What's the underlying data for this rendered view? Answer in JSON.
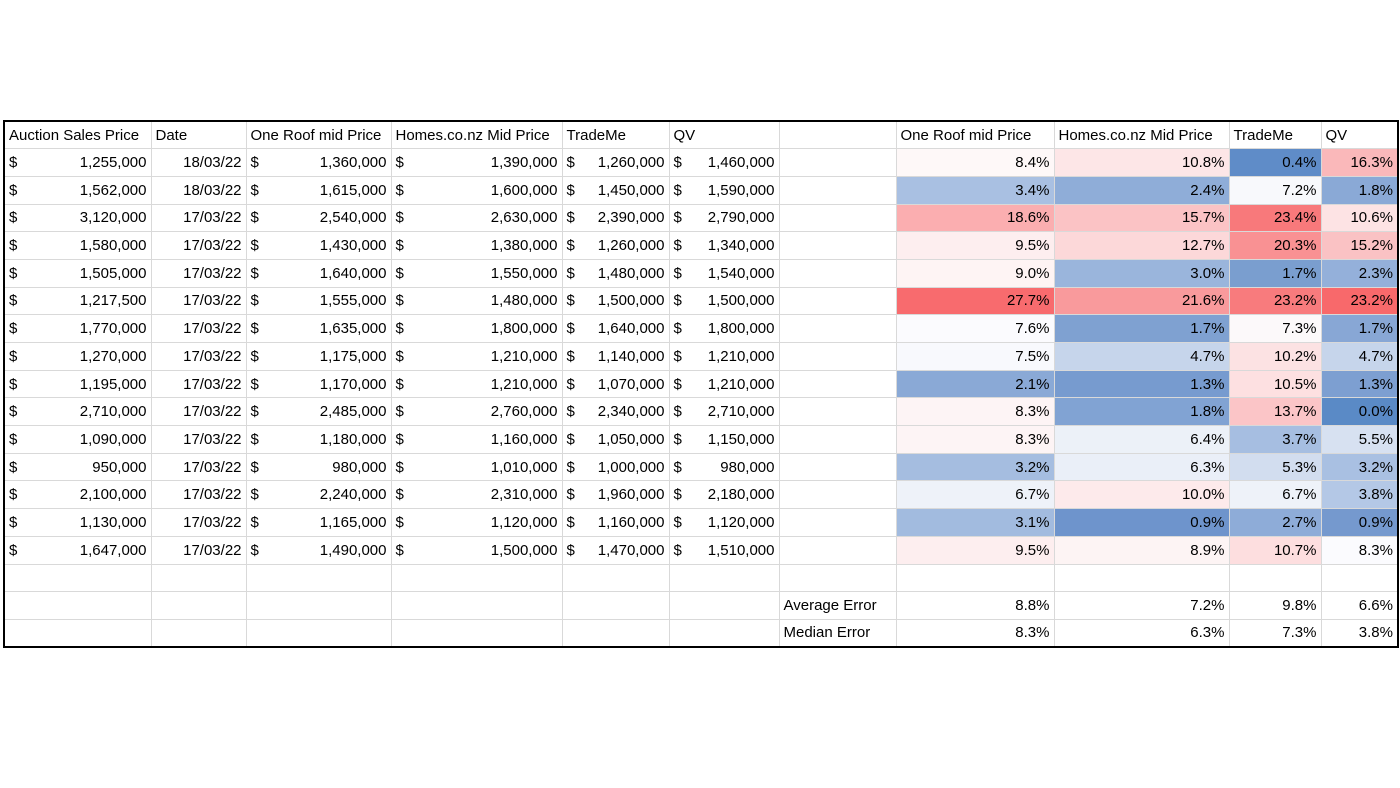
{
  "table": {
    "header_left": [
      "Auction Sales Price",
      "Date",
      "One Roof mid Price",
      "Homes.co.nz Mid Price",
      "TradeMe",
      "QV"
    ],
    "header_right": [
      "One Roof mid Price",
      "Homes.co.nz Mid Price",
      "TradeMe",
      "QV"
    ],
    "rows": [
      {
        "cells": [
          [
            "$",
            "1,255,000"
          ],
          "18/03/22",
          [
            "$",
            "1,360,000"
          ],
          [
            "$",
            "1,390,000"
          ],
          [
            "$",
            "1,260,000"
          ],
          [
            "$",
            "1,460,000"
          ]
        ],
        "errors": [
          {
            "text": "8.4%",
            "fill": "#fef8f8"
          },
          {
            "text": "10.8%",
            "fill": "#fde6e7"
          },
          {
            "text": "0.4%",
            "fill": "#5f8cc8"
          },
          {
            "text": "16.3%",
            "fill": "#fab8ba"
          }
        ]
      },
      {
        "cells": [
          [
            "$",
            "1,562,000"
          ],
          "18/03/22",
          [
            "$",
            "1,615,000"
          ],
          [
            "$",
            "1,600,000"
          ],
          [
            "$",
            "1,450,000"
          ],
          [
            "$",
            "1,590,000"
          ]
        ],
        "errors": [
          {
            "text": "3.4%",
            "fill": "#a9c0e2"
          },
          {
            "text": "2.4%",
            "fill": "#8fadd8"
          },
          {
            "text": "7.2%",
            "fill": "#f8f9fc"
          },
          {
            "text": "1.8%",
            "fill": "#8aa9d6"
          }
        ]
      },
      {
        "cells": [
          [
            "$",
            "3,120,000"
          ],
          "17/03/22",
          [
            "$",
            "2,540,000"
          ],
          [
            "$",
            "2,630,000"
          ],
          [
            "$",
            "2,390,000"
          ],
          [
            "$",
            "2,790,000"
          ]
        ],
        "errors": [
          {
            "text": "18.6%",
            "fill": "#fbaeb0"
          },
          {
            "text": "15.7%",
            "fill": "#fbc3c5"
          },
          {
            "text": "23.4%",
            "fill": "#f8797b"
          },
          {
            "text": "10.6%",
            "fill": "#fde3e4"
          }
        ]
      },
      {
        "cells": [
          [
            "$",
            "1,580,000"
          ],
          "17/03/22",
          [
            "$",
            "1,430,000"
          ],
          [
            "$",
            "1,380,000"
          ],
          [
            "$",
            "1,260,000"
          ],
          [
            "$",
            "1,340,000"
          ]
        ],
        "errors": [
          {
            "text": "9.5%",
            "fill": "#fdeeef"
          },
          {
            "text": "12.7%",
            "fill": "#fcd8d9"
          },
          {
            "text": "20.3%",
            "fill": "#f99193"
          },
          {
            "text": "15.2%",
            "fill": "#fac2c4"
          }
        ]
      },
      {
        "cells": [
          [
            "$",
            "1,505,000"
          ],
          "17/03/22",
          [
            "$",
            "1,640,000"
          ],
          [
            "$",
            "1,550,000"
          ],
          [
            "$",
            "1,480,000"
          ],
          [
            "$",
            "1,540,000"
          ]
        ],
        "errors": [
          {
            "text": "9.0%",
            "fill": "#fef4f4"
          },
          {
            "text": "3.0%",
            "fill": "#9ab5dc"
          },
          {
            "text": "1.7%",
            "fill": "#7a9ecf"
          },
          {
            "text": "2.3%",
            "fill": "#94b0da"
          }
        ]
      },
      {
        "cells": [
          [
            "$",
            "1,217,500"
          ],
          "17/03/22",
          [
            "$",
            "1,555,000"
          ],
          [
            "$",
            "1,480,000"
          ],
          [
            "$",
            "1,500,000"
          ],
          [
            "$",
            "1,500,000"
          ]
        ],
        "errors": [
          {
            "text": "27.7%",
            "fill": "#f86b6e"
          },
          {
            "text": "21.6%",
            "fill": "#f99a9c"
          },
          {
            "text": "23.2%",
            "fill": "#f87b7d"
          },
          {
            "text": "23.2%",
            "fill": "#f8696b"
          }
        ]
      },
      {
        "cells": [
          [
            "$",
            "1,770,000"
          ],
          "17/03/22",
          [
            "$",
            "1,635,000"
          ],
          [
            "$",
            "1,800,000"
          ],
          [
            "$",
            "1,640,000"
          ],
          [
            "$",
            "1,800,000"
          ]
        ],
        "errors": [
          {
            "text": "7.6%",
            "fill": "#fbfbfe"
          },
          {
            "text": "1.7%",
            "fill": "#7fa1d1"
          },
          {
            "text": "7.3%",
            "fill": "#fcf9fa"
          },
          {
            "text": "1.7%",
            "fill": "#88a7d5"
          }
        ]
      },
      {
        "cells": [
          [
            "$",
            "1,270,000"
          ],
          "17/03/22",
          [
            "$",
            "1,175,000"
          ],
          [
            "$",
            "1,210,000"
          ],
          [
            "$",
            "1,140,000"
          ],
          [
            "$",
            "1,210,000"
          ]
        ],
        "errors": [
          {
            "text": "7.5%",
            "fill": "#f8f9fd"
          },
          {
            "text": "4.7%",
            "fill": "#c6d5eb"
          },
          {
            "text": "10.2%",
            "fill": "#fce2e3"
          },
          {
            "text": "4.7%",
            "fill": "#c6d5eb"
          }
        ]
      },
      {
        "cells": [
          [
            "$",
            "1,195,000"
          ],
          "17/03/22",
          [
            "$",
            "1,170,000"
          ],
          [
            "$",
            "1,210,000"
          ],
          [
            "$",
            "1,070,000"
          ],
          [
            "$",
            "1,210,000"
          ]
        ],
        "errors": [
          {
            "text": "2.1%",
            "fill": "#8aa9d6"
          },
          {
            "text": "1.3%",
            "fill": "#779bcf"
          },
          {
            "text": "10.5%",
            "fill": "#fde0e1"
          },
          {
            "text": "1.3%",
            "fill": "#7d9fd1"
          }
        ]
      },
      {
        "cells": [
          [
            "$",
            "2,710,000"
          ],
          "17/03/22",
          [
            "$",
            "2,485,000"
          ],
          [
            "$",
            "2,760,000"
          ],
          [
            "$",
            "2,340,000"
          ],
          [
            "$",
            "2,710,000"
          ]
        ],
        "errors": [
          {
            "text": "8.3%",
            "fill": "#fdf4f5"
          },
          {
            "text": "1.8%",
            "fill": "#81a3d3"
          },
          {
            "text": "13.7%",
            "fill": "#fbc5c7"
          },
          {
            "text": "0.0%",
            "fill": "#5a8ac6"
          }
        ]
      },
      {
        "cells": [
          [
            "$",
            "1,090,000"
          ],
          "17/03/22",
          [
            "$",
            "1,180,000"
          ],
          [
            "$",
            "1,160,000"
          ],
          [
            "$",
            "1,050,000"
          ],
          [
            "$",
            "1,150,000"
          ]
        ],
        "errors": [
          {
            "text": "8.3%",
            "fill": "#fdf4f5"
          },
          {
            "text": "6.4%",
            "fill": "#ecf1f8"
          },
          {
            "text": "3.7%",
            "fill": "#a6bee1"
          },
          {
            "text": "5.5%",
            "fill": "#d7e1f1"
          }
        ]
      },
      {
        "cells": [
          [
            "$",
            "950,000"
          ],
          "17/03/22",
          [
            "$",
            "980,000"
          ],
          [
            "$",
            "1,010,000"
          ],
          [
            "$",
            "1,000,000"
          ],
          [
            "$",
            "980,000"
          ]
        ],
        "errors": [
          {
            "text": "3.2%",
            "fill": "#a5bde0"
          },
          {
            "text": "6.3%",
            "fill": "#eaeff8"
          },
          {
            "text": "5.3%",
            "fill": "#d2ddef"
          },
          {
            "text": "3.2%",
            "fill": "#a9c0e2"
          }
        ]
      },
      {
        "cells": [
          [
            "$",
            "2,100,000"
          ],
          "17/03/22",
          [
            "$",
            "2,240,000"
          ],
          [
            "$",
            "2,310,000"
          ],
          [
            "$",
            "1,960,000"
          ],
          [
            "$",
            "2,180,000"
          ]
        ],
        "errors": [
          {
            "text": "6.7%",
            "fill": "#eef2f9"
          },
          {
            "text": "10.0%",
            "fill": "#fdeaeb"
          },
          {
            "text": "6.7%",
            "fill": "#eef2f9"
          },
          {
            "text": "3.8%",
            "fill": "#b4c8e6"
          }
        ]
      },
      {
        "cells": [
          [
            "$",
            "1,130,000"
          ],
          "17/03/22",
          [
            "$",
            "1,165,000"
          ],
          [
            "$",
            "1,120,000"
          ],
          [
            "$",
            "1,160,000"
          ],
          [
            "$",
            "1,120,000"
          ]
        ],
        "errors": [
          {
            "text": "3.1%",
            "fill": "#a2bbdf"
          },
          {
            "text": "0.9%",
            "fill": "#6e94cc"
          },
          {
            "text": "2.7%",
            "fill": "#8eacd8"
          },
          {
            "text": "0.9%",
            "fill": "#7599ce"
          }
        ]
      },
      {
        "cells": [
          [
            "$",
            "1,647,000"
          ],
          "17/03/22",
          [
            "$",
            "1,490,000"
          ],
          [
            "$",
            "1,500,000"
          ],
          [
            "$",
            "1,470,000"
          ],
          [
            "$",
            "1,510,000"
          ]
        ],
        "errors": [
          {
            "text": "9.5%",
            "fill": "#fdeeef"
          },
          {
            "text": "8.9%",
            "fill": "#fdf4f4"
          },
          {
            "text": "10.7%",
            "fill": "#fddedf"
          },
          {
            "text": "8.3%",
            "fill": "#fbfbfe"
          }
        ]
      }
    ],
    "summary": [
      {
        "label": "Average Error",
        "values": [
          "8.8%",
          "7.2%",
          "9.8%",
          "6.6%"
        ]
      },
      {
        "label": "Median Error",
        "values": [
          "8.3%",
          "6.3%",
          "7.3%",
          "3.8%"
        ]
      }
    ]
  }
}
